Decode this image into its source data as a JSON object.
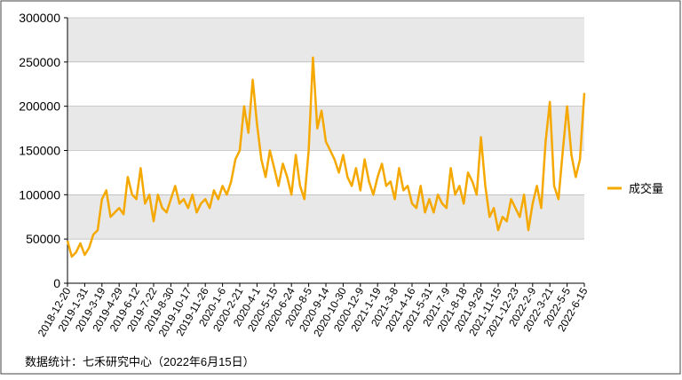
{
  "chart_data": {
    "type": "line",
    "x": [
      "2018-12-20",
      null,
      null,
      null,
      "2019-1-31",
      null,
      null,
      null,
      "2019-3-19",
      null,
      null,
      null,
      "2019-4-29",
      null,
      null,
      null,
      "2019-6-12",
      null,
      null,
      null,
      "2019-7-22",
      null,
      null,
      null,
      "2019-8-30",
      null,
      null,
      null,
      "2019-10-17",
      null,
      null,
      null,
      "2019-11-26",
      null,
      null,
      null,
      "2020-1-6",
      null,
      null,
      null,
      "2020-2-21",
      null,
      null,
      null,
      "2020-4-1",
      null,
      null,
      null,
      "2020-5-15",
      null,
      null,
      null,
      "2020-6-24",
      null,
      null,
      null,
      "2020-8-5",
      null,
      null,
      null,
      "2020-9-14",
      null,
      null,
      null,
      "2020-10-30",
      null,
      null,
      null,
      "2020-12-9",
      null,
      null,
      null,
      "2021-1-19",
      null,
      null,
      null,
      "2021-3-8",
      null,
      null,
      null,
      "2021-4-16",
      null,
      null,
      null,
      "2021-5-31",
      null,
      null,
      null,
      "2021-7-9",
      null,
      null,
      null,
      "2021-8-18",
      null,
      null,
      null,
      "2021-9-29",
      null,
      null,
      null,
      "2021-11-15",
      null,
      null,
      null,
      "2021-12-23",
      null,
      null,
      null,
      "2022-2-9",
      null,
      null,
      null,
      "2022-3-21",
      null,
      null,
      null,
      "2022-5-5",
      null,
      null,
      null,
      "2022-6-15"
    ],
    "series": [
      {
        "name": "成交量",
        "color": "#f5a800",
        "values": [
          48000,
          30000,
          35000,
          45000,
          32000,
          40000,
          55000,
          60000,
          95000,
          105000,
          75000,
          80000,
          85000,
          78000,
          120000,
          100000,
          95000,
          130000,
          90000,
          100000,
          70000,
          100000,
          85000,
          80000,
          95000,
          110000,
          90000,
          95000,
          85000,
          100000,
          80000,
          90000,
          95000,
          85000,
          105000,
          95000,
          110000,
          100000,
          115000,
          140000,
          150000,
          200000,
          170000,
          230000,
          180000,
          140000,
          120000,
          150000,
          130000,
          110000,
          135000,
          120000,
          100000,
          145000,
          110000,
          95000,
          150000,
          255000,
          175000,
          195000,
          160000,
          150000,
          140000,
          125000,
          145000,
          120000,
          110000,
          130000,
          105000,
          140000,
          115000,
          100000,
          120000,
          135000,
          110000,
          115000,
          95000,
          130000,
          105000,
          110000,
          90000,
          85000,
          110000,
          80000,
          95000,
          80000,
          100000,
          90000,
          85000,
          130000,
          100000,
          110000,
          90000,
          125000,
          115000,
          100000,
          165000,
          110000,
          75000,
          85000,
          60000,
          75000,
          70000,
          95000,
          85000,
          75000,
          100000,
          60000,
          90000,
          110000,
          85000,
          160000,
          205000,
          110000,
          95000,
          150000,
          200000,
          145000,
          120000,
          140000,
          215000
        ]
      }
    ],
    "ylim": [
      0,
      300000
    ],
    "yticks": [
      0,
      50000,
      100000,
      150000,
      200000,
      250000,
      300000
    ],
    "grid": true,
    "legend": "right",
    "note": "数据统计：七禾研究中心（2022年6月15日）"
  }
}
